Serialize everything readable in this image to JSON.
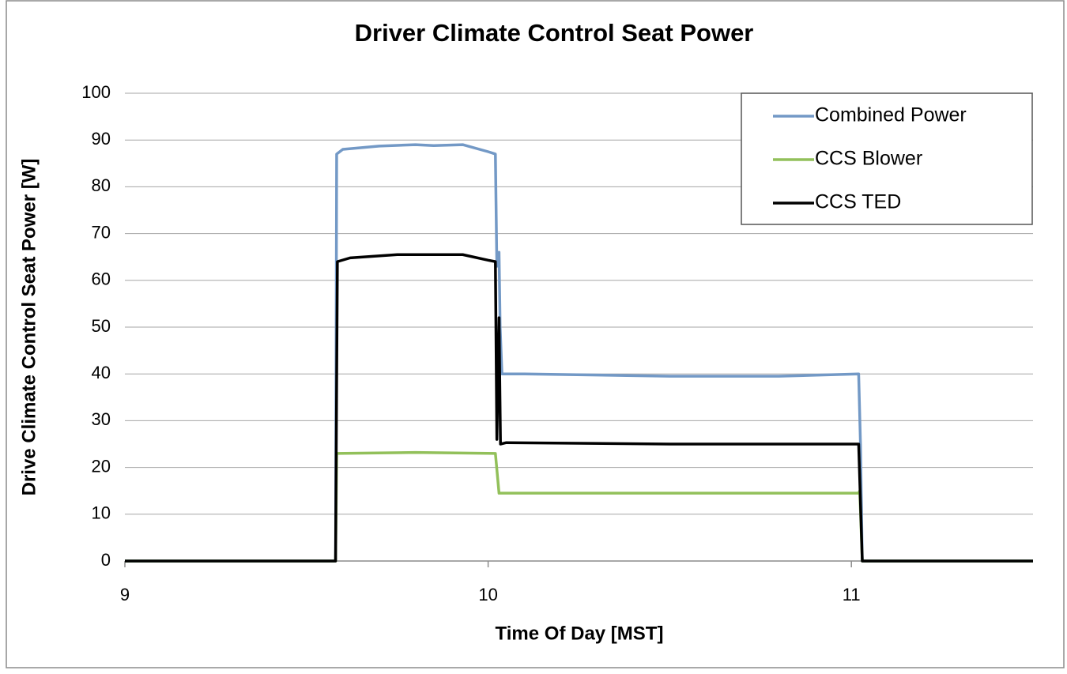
{
  "chart_data": {
    "type": "line",
    "title": "Driver Climate Control Seat Power",
    "xlabel": "Time Of Day [MST]",
    "ylabel": "Drive Climate Control Seat Power [W]",
    "xlim": [
      9,
      11.5
    ],
    "xticks": [
      9,
      10,
      11
    ],
    "ylim": [
      0,
      100
    ],
    "yticks": [
      0,
      10,
      20,
      30,
      40,
      50,
      60,
      70,
      80,
      90,
      100
    ],
    "grid": true,
    "legend": "upper-right",
    "series": [
      {
        "name": "Combined Power",
        "color": "#7399c6",
        "x": [
          9,
          9.58,
          9.583,
          9.6,
          9.7,
          9.8,
          9.85,
          9.93,
          10.0,
          10.02,
          10.024,
          10.03,
          10.033,
          10.038,
          10.1,
          10.5,
          10.8,
          11.02,
          11.025,
          11.03,
          11.5
        ],
        "values": [
          0,
          0,
          87,
          88,
          88.7,
          89,
          88.8,
          89,
          87.5,
          87,
          63,
          66,
          50,
          40,
          40,
          39.5,
          39.5,
          40,
          25,
          0,
          0
        ]
      },
      {
        "name": "CCS Blower",
        "color": "#92c05a",
        "x": [
          9,
          9.58,
          9.583,
          9.8,
          10.02,
          10.03,
          10.5,
          11.02,
          11.023,
          11.03,
          11.5
        ],
        "values": [
          0,
          0,
          23,
          23.2,
          23,
          14.5,
          14.5,
          14.5,
          15,
          0,
          0
        ]
      },
      {
        "name": "CCS TED",
        "color": "#000000",
        "x": [
          9,
          9.58,
          9.585,
          9.62,
          9.75,
          9.93,
          10.0,
          10.02,
          10.024,
          10.03,
          10.034,
          10.05,
          10.5,
          11.02,
          11.03,
          11.5
        ],
        "values": [
          0,
          0,
          64,
          64.8,
          65.5,
          65.5,
          64.3,
          64,
          26,
          52,
          25,
          25.3,
          25,
          25,
          0,
          0
        ]
      }
    ]
  }
}
